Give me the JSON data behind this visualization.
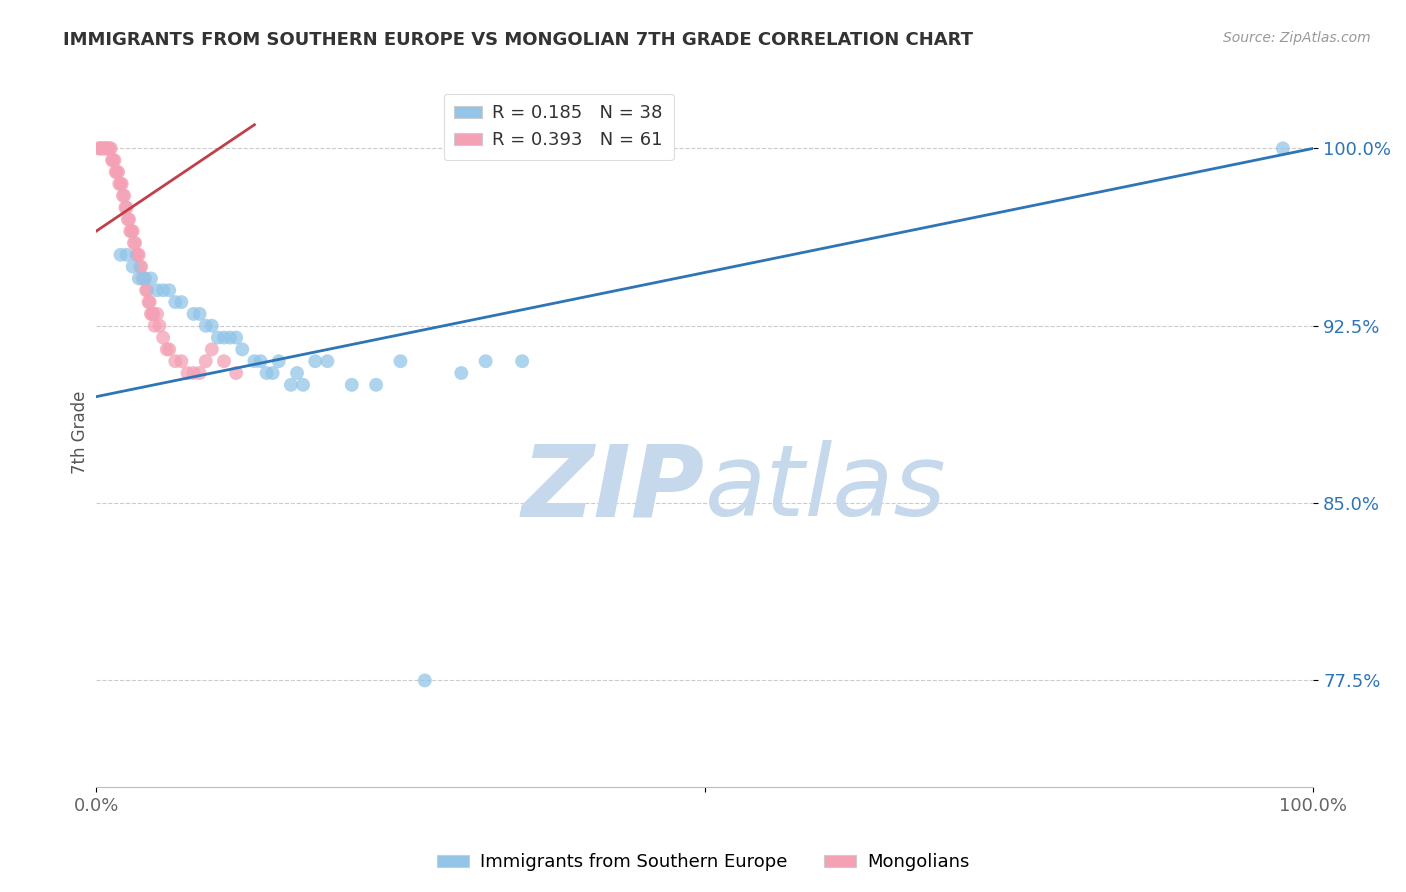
{
  "title": "IMMIGRANTS FROM SOUTHERN EUROPE VS MONGOLIAN 7TH GRADE CORRELATION CHART",
  "source": "Source: ZipAtlas.com",
  "ylabel": "7th Grade",
  "ytick_labels": [
    "77.5%",
    "85.0%",
    "92.5%",
    "100.0%"
  ],
  "ytick_values": [
    0.775,
    0.85,
    0.925,
    1.0
  ],
  "ylim": [
    0.73,
    1.03
  ],
  "xlim": [
    0.0,
    1.0
  ],
  "blue_color": "#92C5E8",
  "pink_color": "#F4A0B5",
  "blue_R": 0.185,
  "blue_N": 38,
  "pink_R": 0.393,
  "pink_N": 61,
  "trend_color": "#2E75B6",
  "pink_trend_color": "#C0404A",
  "blue_scatter_x": [
    0.02,
    0.025,
    0.03,
    0.035,
    0.04,
    0.045,
    0.05,
    0.055,
    0.06,
    0.065,
    0.07,
    0.08,
    0.085,
    0.09,
    0.095,
    0.1,
    0.105,
    0.11,
    0.115,
    0.12,
    0.13,
    0.135,
    0.14,
    0.145,
    0.15,
    0.16,
    0.165,
    0.17,
    0.18,
    0.19,
    0.21,
    0.23,
    0.25,
    0.3,
    0.32,
    0.35,
    0.975,
    0.27
  ],
  "blue_scatter_y": [
    0.955,
    0.955,
    0.95,
    0.945,
    0.945,
    0.945,
    0.94,
    0.94,
    0.94,
    0.935,
    0.935,
    0.93,
    0.93,
    0.925,
    0.925,
    0.92,
    0.92,
    0.92,
    0.92,
    0.915,
    0.91,
    0.91,
    0.905,
    0.905,
    0.91,
    0.9,
    0.905,
    0.9,
    0.91,
    0.91,
    0.9,
    0.9,
    0.91,
    0.905,
    0.91,
    0.91,
    1.0,
    0.775
  ],
  "pink_scatter_x": [
    0.002,
    0.003,
    0.004,
    0.005,
    0.006,
    0.007,
    0.008,
    0.009,
    0.01,
    0.011,
    0.012,
    0.013,
    0.014,
    0.015,
    0.016,
    0.017,
    0.018,
    0.019,
    0.02,
    0.021,
    0.022,
    0.023,
    0.024,
    0.025,
    0.026,
    0.027,
    0.028,
    0.029,
    0.03,
    0.031,
    0.032,
    0.033,
    0.034,
    0.035,
    0.036,
    0.037,
    0.038,
    0.039,
    0.04,
    0.041,
    0.042,
    0.043,
    0.044,
    0.045,
    0.046,
    0.047,
    0.048,
    0.05,
    0.052,
    0.055,
    0.058,
    0.06,
    0.065,
    0.07,
    0.075,
    0.08,
    0.085,
    0.09,
    0.095,
    0.105,
    0.115
  ],
  "pink_scatter_y": [
    1.0,
    1.0,
    1.0,
    1.0,
    1.0,
    1.0,
    1.0,
    1.0,
    1.0,
    1.0,
    1.0,
    0.995,
    0.995,
    0.995,
    0.99,
    0.99,
    0.99,
    0.985,
    0.985,
    0.985,
    0.98,
    0.98,
    0.975,
    0.975,
    0.97,
    0.97,
    0.965,
    0.965,
    0.965,
    0.96,
    0.96,
    0.955,
    0.955,
    0.955,
    0.95,
    0.95,
    0.945,
    0.945,
    0.945,
    0.94,
    0.94,
    0.935,
    0.935,
    0.93,
    0.93,
    0.93,
    0.925,
    0.93,
    0.925,
    0.92,
    0.915,
    0.915,
    0.91,
    0.91,
    0.905,
    0.905,
    0.905,
    0.91,
    0.915,
    0.91,
    0.905
  ],
  "blue_trend_x": [
    0.0,
    1.0
  ],
  "blue_trend_y": [
    0.895,
    1.0
  ],
  "pink_trend_x": [
    0.0,
    0.13
  ],
  "pink_trend_y": [
    0.965,
    1.01
  ],
  "watermark_zip": "ZIP",
  "watermark_atlas": "atlas",
  "watermark_color": "#C5D8EC",
  "background_color": "#FFFFFF",
  "grid_color": "#CCCCCC",
  "legend_blue_label": "R = 0.185   N = 38",
  "legend_pink_label": "R = 0.393   N = 61",
  "bottom_legend_blue": "Immigrants from Southern Europe",
  "bottom_legend_pink": "Mongolians"
}
